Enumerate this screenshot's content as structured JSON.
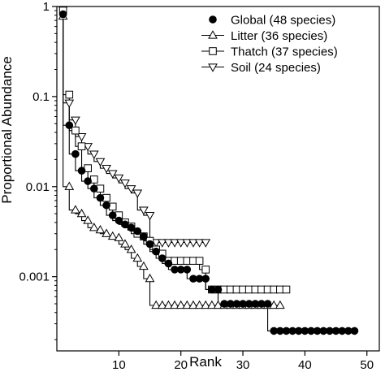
{
  "chart_data": {
    "type": "scatter",
    "title": "",
    "xlabel": "Rank",
    "ylabel": "Proportional Abundance",
    "xlim": [
      0,
      52
    ],
    "ylim": [
      0.00015,
      1
    ],
    "yscale": "log",
    "x_ticks": [
      10,
      20,
      30,
      40,
      50
    ],
    "y_ticks": [
      {
        "value": 1,
        "label": "1"
      },
      {
        "value": 0.1,
        "label": "0.1"
      },
      {
        "value": 0.01,
        "label": "0.01"
      },
      {
        "value": 0.001,
        "label": "0.001"
      }
    ],
    "grid": false,
    "legend_position": "top-right",
    "series": [
      {
        "name": "Global (48 species)",
        "marker": "filled-circle",
        "line": false,
        "x": [
          1,
          2,
          3,
          4,
          5,
          6,
          7,
          8,
          9,
          10,
          11,
          12,
          13,
          14,
          15,
          16,
          17,
          18,
          19,
          20,
          21,
          22,
          23,
          24,
          25,
          26,
          27,
          28,
          29,
          30,
          31,
          32,
          33,
          34,
          35,
          36,
          37,
          38,
          39,
          40,
          41,
          42,
          43,
          44,
          45,
          46,
          47,
          48
        ],
        "y": [
          0.82,
          0.048,
          0.023,
          0.015,
          0.0115,
          0.0095,
          0.0075,
          0.0062,
          0.0048,
          0.0042,
          0.0038,
          0.0035,
          0.0032,
          0.0028,
          0.0023,
          0.0019,
          0.0016,
          0.0014,
          0.0012,
          0.0012,
          0.0012,
          0.00095,
          0.00095,
          0.00095,
          0.00072,
          0.00072,
          0.0005,
          0.0005,
          0.0005,
          0.0005,
          0.0005,
          0.0005,
          0.0005,
          0.0005,
          0.00025,
          0.00025,
          0.00025,
          0.00025,
          0.00025,
          0.00025,
          0.00025,
          0.00025,
          0.00025,
          0.00025,
          0.00025,
          0.00025,
          0.00025,
          0.00025
        ]
      },
      {
        "name": "Litter (36 species)",
        "marker": "open-triangle-up",
        "line": true,
        "x": [
          1,
          2,
          3,
          4,
          5,
          6,
          7,
          8,
          9,
          10,
          11,
          12,
          13,
          14,
          15,
          16,
          17,
          18,
          19,
          20,
          21,
          22,
          23,
          24,
          25,
          26,
          27,
          28,
          29,
          30,
          31,
          32,
          33,
          34,
          35,
          36
        ],
        "y": [
          0.78,
          0.01,
          0.0055,
          0.005,
          0.0042,
          0.0035,
          0.0033,
          0.003,
          0.0028,
          0.0027,
          0.0023,
          0.002,
          0.0016,
          0.0013,
          0.00095,
          0.00048,
          0.00048,
          0.00048,
          0.00048,
          0.00048,
          0.00048,
          0.00048,
          0.00048,
          0.00048,
          0.00048,
          0.00048,
          0.00048,
          0.00048,
          0.00048,
          0.00048,
          0.00048,
          0.00048,
          0.00048,
          0.00048,
          0.00048,
          0.00048
        ]
      },
      {
        "name": "Thatch (37 species)",
        "marker": "open-square",
        "line": true,
        "x": [
          1,
          2,
          3,
          4,
          5,
          6,
          7,
          8,
          9,
          10,
          11,
          12,
          13,
          14,
          15,
          16,
          17,
          18,
          19,
          20,
          21,
          22,
          23,
          24,
          25,
          26,
          27,
          28,
          29,
          30,
          31,
          32,
          33,
          34,
          35,
          36,
          37
        ],
        "y": [
          0.9,
          0.105,
          0.042,
          0.028,
          0.016,
          0.012,
          0.0095,
          0.0075,
          0.006,
          0.0048,
          0.004,
          0.0036,
          0.003,
          0.0028,
          0.0025,
          0.002,
          0.0018,
          0.0015,
          0.0015,
          0.0015,
          0.0015,
          0.0015,
          0.0015,
          0.0012,
          0.00072,
          0.00072,
          0.00072,
          0.00072,
          0.00072,
          0.00072,
          0.00072,
          0.00072,
          0.00072,
          0.00072,
          0.00072,
          0.00072,
          0.00072
        ]
      },
      {
        "name": "Soil (24 species)",
        "marker": "open-triangle-down",
        "line": true,
        "x": [
          1,
          2,
          3,
          4,
          5,
          6,
          7,
          8,
          9,
          10,
          11,
          12,
          13,
          14,
          15,
          16,
          17,
          18,
          19,
          20,
          21,
          22,
          23,
          24
        ],
        "y": [
          0.92,
          0.085,
          0.055,
          0.036,
          0.028,
          0.023,
          0.019,
          0.016,
          0.014,
          0.0125,
          0.011,
          0.0095,
          0.0085,
          0.0055,
          0.0048,
          0.0024,
          0.0024,
          0.0024,
          0.0024,
          0.0024,
          0.0024,
          0.0024,
          0.0024,
          0.0024
        ]
      }
    ]
  }
}
